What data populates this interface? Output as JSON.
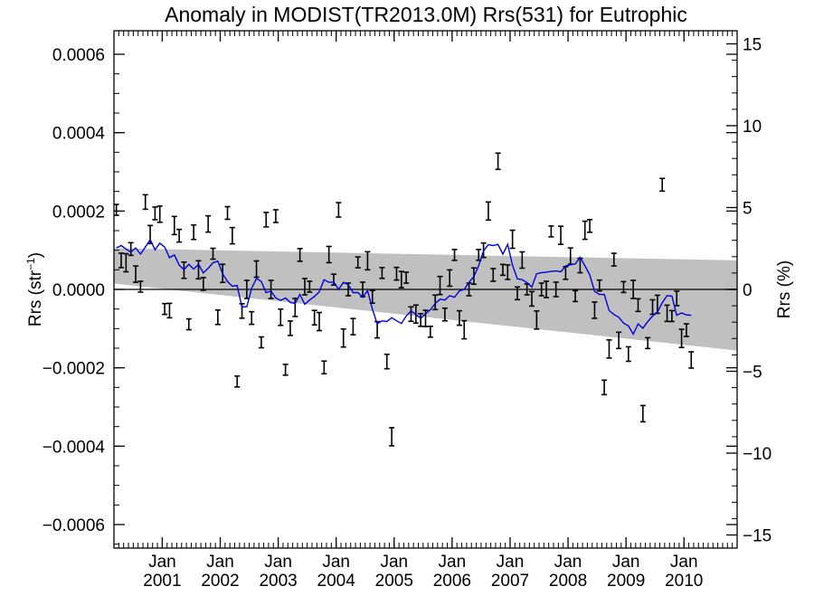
{
  "chart_data": {
    "type": "scatter",
    "title": "Anomaly in MODIST(TR2013.0M) Rrs(531) for Eutrophic",
    "ylabel_left": "Rrs (str⁻¹)",
    "ylabel_right": "Rrs (%)",
    "x_range": [
      "2000-03-01",
      "2010-12-01"
    ],
    "ylim_left": [
      -0.00066,
      0.00066
    ],
    "ylim_right": [
      -15.8,
      15.8
    ],
    "left_ticks": [
      {
        "value": 0.0006,
        "label": "0.0006"
      },
      {
        "value": 0.0004,
        "label": "0.0004"
      },
      {
        "value": 0.0002,
        "label": "0.0002"
      },
      {
        "value": 0.0,
        "label": "0.0000"
      },
      {
        "value": -0.0002,
        "label": "−0.0002"
      },
      {
        "value": -0.0004,
        "label": "−0.0004"
      },
      {
        "value": -0.0006,
        "label": "−0.0006"
      }
    ],
    "right_ticks": [
      {
        "value": 15,
        "label": "15"
      },
      {
        "value": 10,
        "label": "10"
      },
      {
        "value": 5,
        "label": "5"
      },
      {
        "value": 0,
        "label": "0"
      },
      {
        "value": -5,
        "label": "−5"
      },
      {
        "value": -10,
        "label": "−10"
      },
      {
        "value": -15,
        "label": "−15"
      }
    ],
    "x_ticks": [
      {
        "date": "2001-01",
        "month": "Jan",
        "year": "2001"
      },
      {
        "date": "2002-01",
        "month": "Jan",
        "year": "2002"
      },
      {
        "date": "2003-01",
        "month": "Jan",
        "year": "2003"
      },
      {
        "date": "2004-01",
        "month": "Jan",
        "year": "2004"
      },
      {
        "date": "2005-01",
        "month": "Jan",
        "year": "2005"
      },
      {
        "date": "2006-01",
        "month": "Jan",
        "year": "2006"
      },
      {
        "date": "2007-01",
        "month": "Jan",
        "year": "2007"
      },
      {
        "date": "2008-01",
        "month": "Jan",
        "year": "2008"
      },
      {
        "date": "2009-01",
        "month": "Jan",
        "year": "2009"
      },
      {
        "date": "2010-01",
        "month": "Jan",
        "year": "2010"
      }
    ],
    "monthly_anomaly": {
      "color": "#000000",
      "start": "2000-03",
      "values": [
        0.000203,
        7.4e-05,
        6.8e-05,
        0.000103,
        3.9e-05,
        7e-06,
        0.000223,
        0.00014,
        0.000194,
        0.000192,
        -5e-05,
        -5.4e-05,
        0.000163,
        0.000137,
        4.9e-05,
        -8.9e-05,
        0.000146,
        5e-05,
        1.4e-05,
        0.000167,
        9.1e-05,
        -7.1e-05,
        4.1e-05,
        0.000195,
        0.000137,
        -0.000235,
        -5.5e-05,
        0.0,
        -7.3e-05,
        5.2e-05,
        -0.000135,
        0.000178,
        0.0,
        0.000187,
        -7.1e-05,
        -0.000205,
        -9.9e-05,
        -4.6e-05,
        8.8e-05,
        7e-06,
        7e-06,
        -7.2e-05,
        -8.2e-05,
        -0.000199,
        8.9e-05,
        2.5e-05,
        0.000203,
        -0.000124,
        0.0,
        -9.5e-05,
        6.9e-05,
        0.0,
        7.3e-05,
        -1.9e-05,
        -0.000103,
        4.2e-05,
        -0.000184,
        -0.000376,
        4e-05,
        2.5e-05,
        3e-05,
        -6.3e-05,
        -6.3e-05,
        -7.8e-05,
        -7.4e-05,
        -0.000108,
        -3.3e-05,
        1e-05,
        -6.4e-05,
        2.9e-05,
        8.8e-05,
        -7.3e-05,
        -0.000103,
        0.0,
        3.4e-05,
        8.8e-05,
        0.0001,
        0.0002,
        3.7e-05,
        0.000327,
        5e-05,
        4.4e-05,
        0.000128,
        -1e-05,
        7.5e-05,
        0.0,
        -2.4e-05,
        -7.8e-05,
        0.0,
        0.0,
        0.000148,
        0.0,
        0.000138,
        4.2e-05,
        8.5e-05,
        -1.7e-05,
        6.1e-05,
        0.000151,
        0.000162,
        -5.3e-05,
        1e-05,
        -0.00025,
        -0.000152,
        7.6e-05,
        -0.00013,
        6e-06,
        -0.000165,
        0.0,
        -4e-05,
        -0.000317,
        -0.000137,
        -4.5e-05,
        -3.8e-05,
        0.000267,
        -6.1e-05,
        -6.8e-05,
        -2.3e-05,
        -0.000125,
        -0.000104,
        -0.00018
      ]
    },
    "smoothed_anomaly": {
      "color": "#0000dd",
      "start": "2000-03",
      "values": [
        0.000106,
        0.000112,
        0.000103,
        9.5e-05,
        0.000106,
        9e-05,
        0.000108,
        0.000127,
        0.000101,
        0.000118,
        0.000108,
        8.1e-05,
        8.8e-05,
        6.2e-05,
        5e-05,
        6.4e-05,
        5.2e-05,
        6.4e-05,
        4.2e-05,
        5.4e-05,
        6.8e-05,
        7.2e-05,
        4e-05,
        2e-05,
        8e-06,
        1e-05,
        -4.5e-05,
        -4.4e-05,
        3e-06,
        2.8e-05,
        2e-05,
        -8e-06,
        -4e-06,
        -2.2e-05,
        -2.8e-05,
        -2.2e-05,
        -3.3e-05,
        -3.6e-05,
        -1.3e-05,
        -3.8e-05,
        -2.7e-05,
        -1.8e-05,
        -6e-06,
        2.5e-05,
        1.8e-05,
        1.9e-05,
        0.0,
        1.8e-05,
        1.2e-05,
        -8e-06,
        -8e-06,
        -2e-05,
        -3e-06,
        -5e-05,
        -8.8e-05,
        -8e-05,
        -8.2e-05,
        -7.2e-05,
        -8e-05,
        -8.7e-05,
        -6.8e-05,
        -5.5e-05,
        -6.4e-05,
        -7.4e-05,
        -6.2e-05,
        -5.2e-05,
        -3.6e-05,
        -2.5e-05,
        -2.7e-05,
        -1.6e-05,
        -2e-05,
        -4e-06,
        0.0,
        1.8e-05,
        3.3e-05,
        6.1e-05,
        9.8e-05,
        0.000114,
        0.000112,
        0.000115,
        9e-05,
        0.000115,
        6.2e-05,
        2.7e-05,
        2.5e-05,
        1.7e-05,
        6e-06,
        4e-05,
        4.3e-05,
        4.4e-05,
        4.6e-05,
        4.7e-05,
        4.5e-05,
        6e-05,
        6.3e-05,
        6.5e-05,
        8.2e-05,
        6e-05,
        3.7e-05,
        -5e-06,
        -1.3e-05,
        -1.3e-05,
        -5.4e-05,
        -6.4e-05,
        -7.1e-05,
        -8.6e-05,
        -9.3e-05,
        -0.000114,
        -8.8e-05,
        -9.9e-05,
        -8.2e-05,
        -6.8e-05,
        -5.8e-05,
        -3.4e-05,
        -1.6e-05,
        -1.7e-05,
        -6.6e-05,
        -6e-05,
        -6.5e-05,
        -6.6e-05
      ]
    },
    "trend_band": {
      "color": "#c0c0c0",
      "upper": [
        [
          "2000-03",
          0.000105
        ],
        [
          "2010-12",
          7.4e-05
        ]
      ],
      "lower": [
        [
          "2000-03",
          1.5e-05
        ],
        [
          "2010-12",
          -0.000156
        ]
      ]
    },
    "zero_line": 0
  }
}
